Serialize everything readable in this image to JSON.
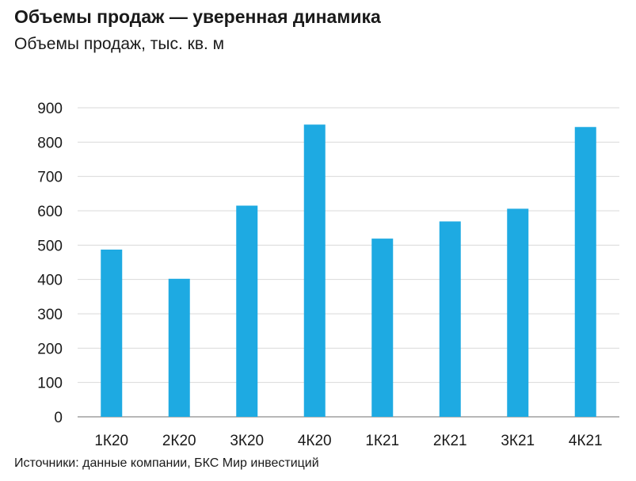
{
  "header": {
    "title": "Объемы продаж — уверенная динамика",
    "subtitle": "Объемы продаж, тыс. кв. м"
  },
  "footer": {
    "source": "Источники: данные компании, БКС Мир инвестиций"
  },
  "chart_data": {
    "type": "bar",
    "title": "Объемы продаж — уверенная динамика",
    "subtitle": "Объемы продаж, тыс. кв. м",
    "xlabel": "",
    "ylabel": "",
    "categories": [
      "1К20",
      "2К20",
      "3К20",
      "4К20",
      "1К21",
      "2К21",
      "3К21",
      "4К21"
    ],
    "values": [
      487,
      402,
      615,
      851,
      519,
      569,
      606,
      844
    ],
    "ylim": [
      0,
      900
    ],
    "yticks": [
      0,
      100,
      200,
      300,
      400,
      500,
      600,
      700,
      800,
      900
    ],
    "grid": true,
    "legend": "none",
    "bar_color": "#1EAAE2",
    "grid_color": "#d9d9d9",
    "axis_color": "#8c8c8c"
  }
}
